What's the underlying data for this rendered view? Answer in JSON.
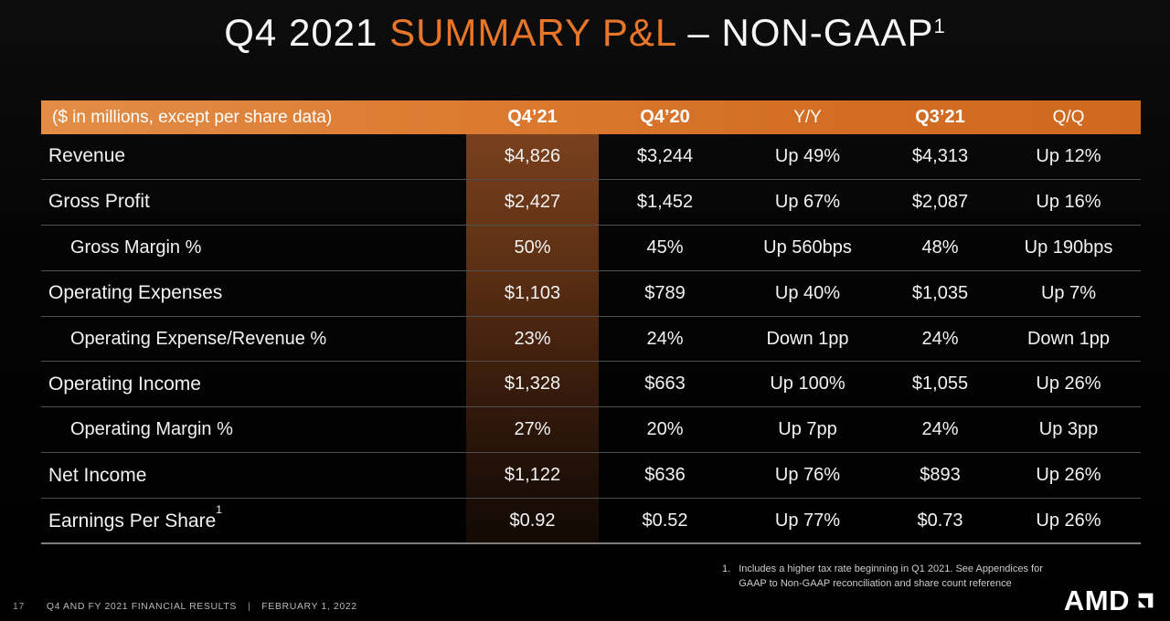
{
  "slide": {
    "title": {
      "part1": "Q4 2021 ",
      "part2": "SUMMARY P&L",
      "part3": " – NON-GAAP",
      "superscript": "1"
    },
    "footnote": {
      "number": "1.",
      "line1": "Includes a higher tax rate beginning in Q1 2021. See Appendices for",
      "line2": "GAAP to Non-GAAP reconciliation and share count reference"
    },
    "footer": {
      "page_number": "17",
      "deck_title": "Q4 AND FY 2021 FINANCIAL RESULTS",
      "separator": "|",
      "date": "FEBRUARY 1, 2022"
    },
    "logo_text": "AMD"
  },
  "table": {
    "columns": [
      {
        "label": "($ in millions, except per share data)",
        "bold": false
      },
      {
        "label": "Q4’21",
        "bold": true
      },
      {
        "label": "Q4’20",
        "bold": true
      },
      {
        "label": "Y/Y",
        "bold": false
      },
      {
        "label": "Q3’21",
        "bold": true
      },
      {
        "label": "Q/Q",
        "bold": false
      }
    ],
    "rows": [
      {
        "label": "Revenue",
        "indent": false,
        "values": [
          "$4,826",
          "$3,244",
          "Up 49%",
          "$4,313",
          "Up 12%"
        ]
      },
      {
        "label": "Gross Profit",
        "indent": false,
        "values": [
          "$2,427",
          "$1,452",
          "Up 67%",
          "$2,087",
          "Up 16%"
        ]
      },
      {
        "label": "Gross Margin %",
        "indent": true,
        "values": [
          "50%",
          "45%",
          "Up 560bps",
          "48%",
          "Up 190bps"
        ]
      },
      {
        "label": "Operating Expenses",
        "indent": false,
        "values": [
          "$1,103",
          "$789",
          "Up 40%",
          "$1,035",
          "Up 7%"
        ]
      },
      {
        "label": "Operating Expense/Revenue %",
        "indent": true,
        "values": [
          "23%",
          "24%",
          "Down 1pp",
          "24%",
          "Down 1pp"
        ]
      },
      {
        "label": "Operating Income",
        "indent": false,
        "values": [
          "$1,328",
          "$663",
          "Up 100%",
          "$1,055",
          "Up 26%"
        ]
      },
      {
        "label": "Operating Margin %",
        "indent": true,
        "values": [
          "27%",
          "20%",
          "Up 7pp",
          "24%",
          "Up 3pp"
        ]
      },
      {
        "label": "Net Income",
        "indent": false,
        "values": [
          "$1,122",
          "$636",
          "Up 76%",
          "$893",
          "Up 26%"
        ]
      },
      {
        "label": "Earnings Per Share",
        "superscript": "1",
        "indent": false,
        "values": [
          "$0.92",
          "$0.52",
          "Up 77%",
          "$0.73",
          "Up 26%"
        ]
      }
    ]
  },
  "colors": {
    "accent_orange": "#E8762A",
    "header_gradient_left": "#E28D47",
    "header_gradient_right": "#CF691F",
    "highlight_column_top": "#79401E",
    "background": "#040404"
  }
}
